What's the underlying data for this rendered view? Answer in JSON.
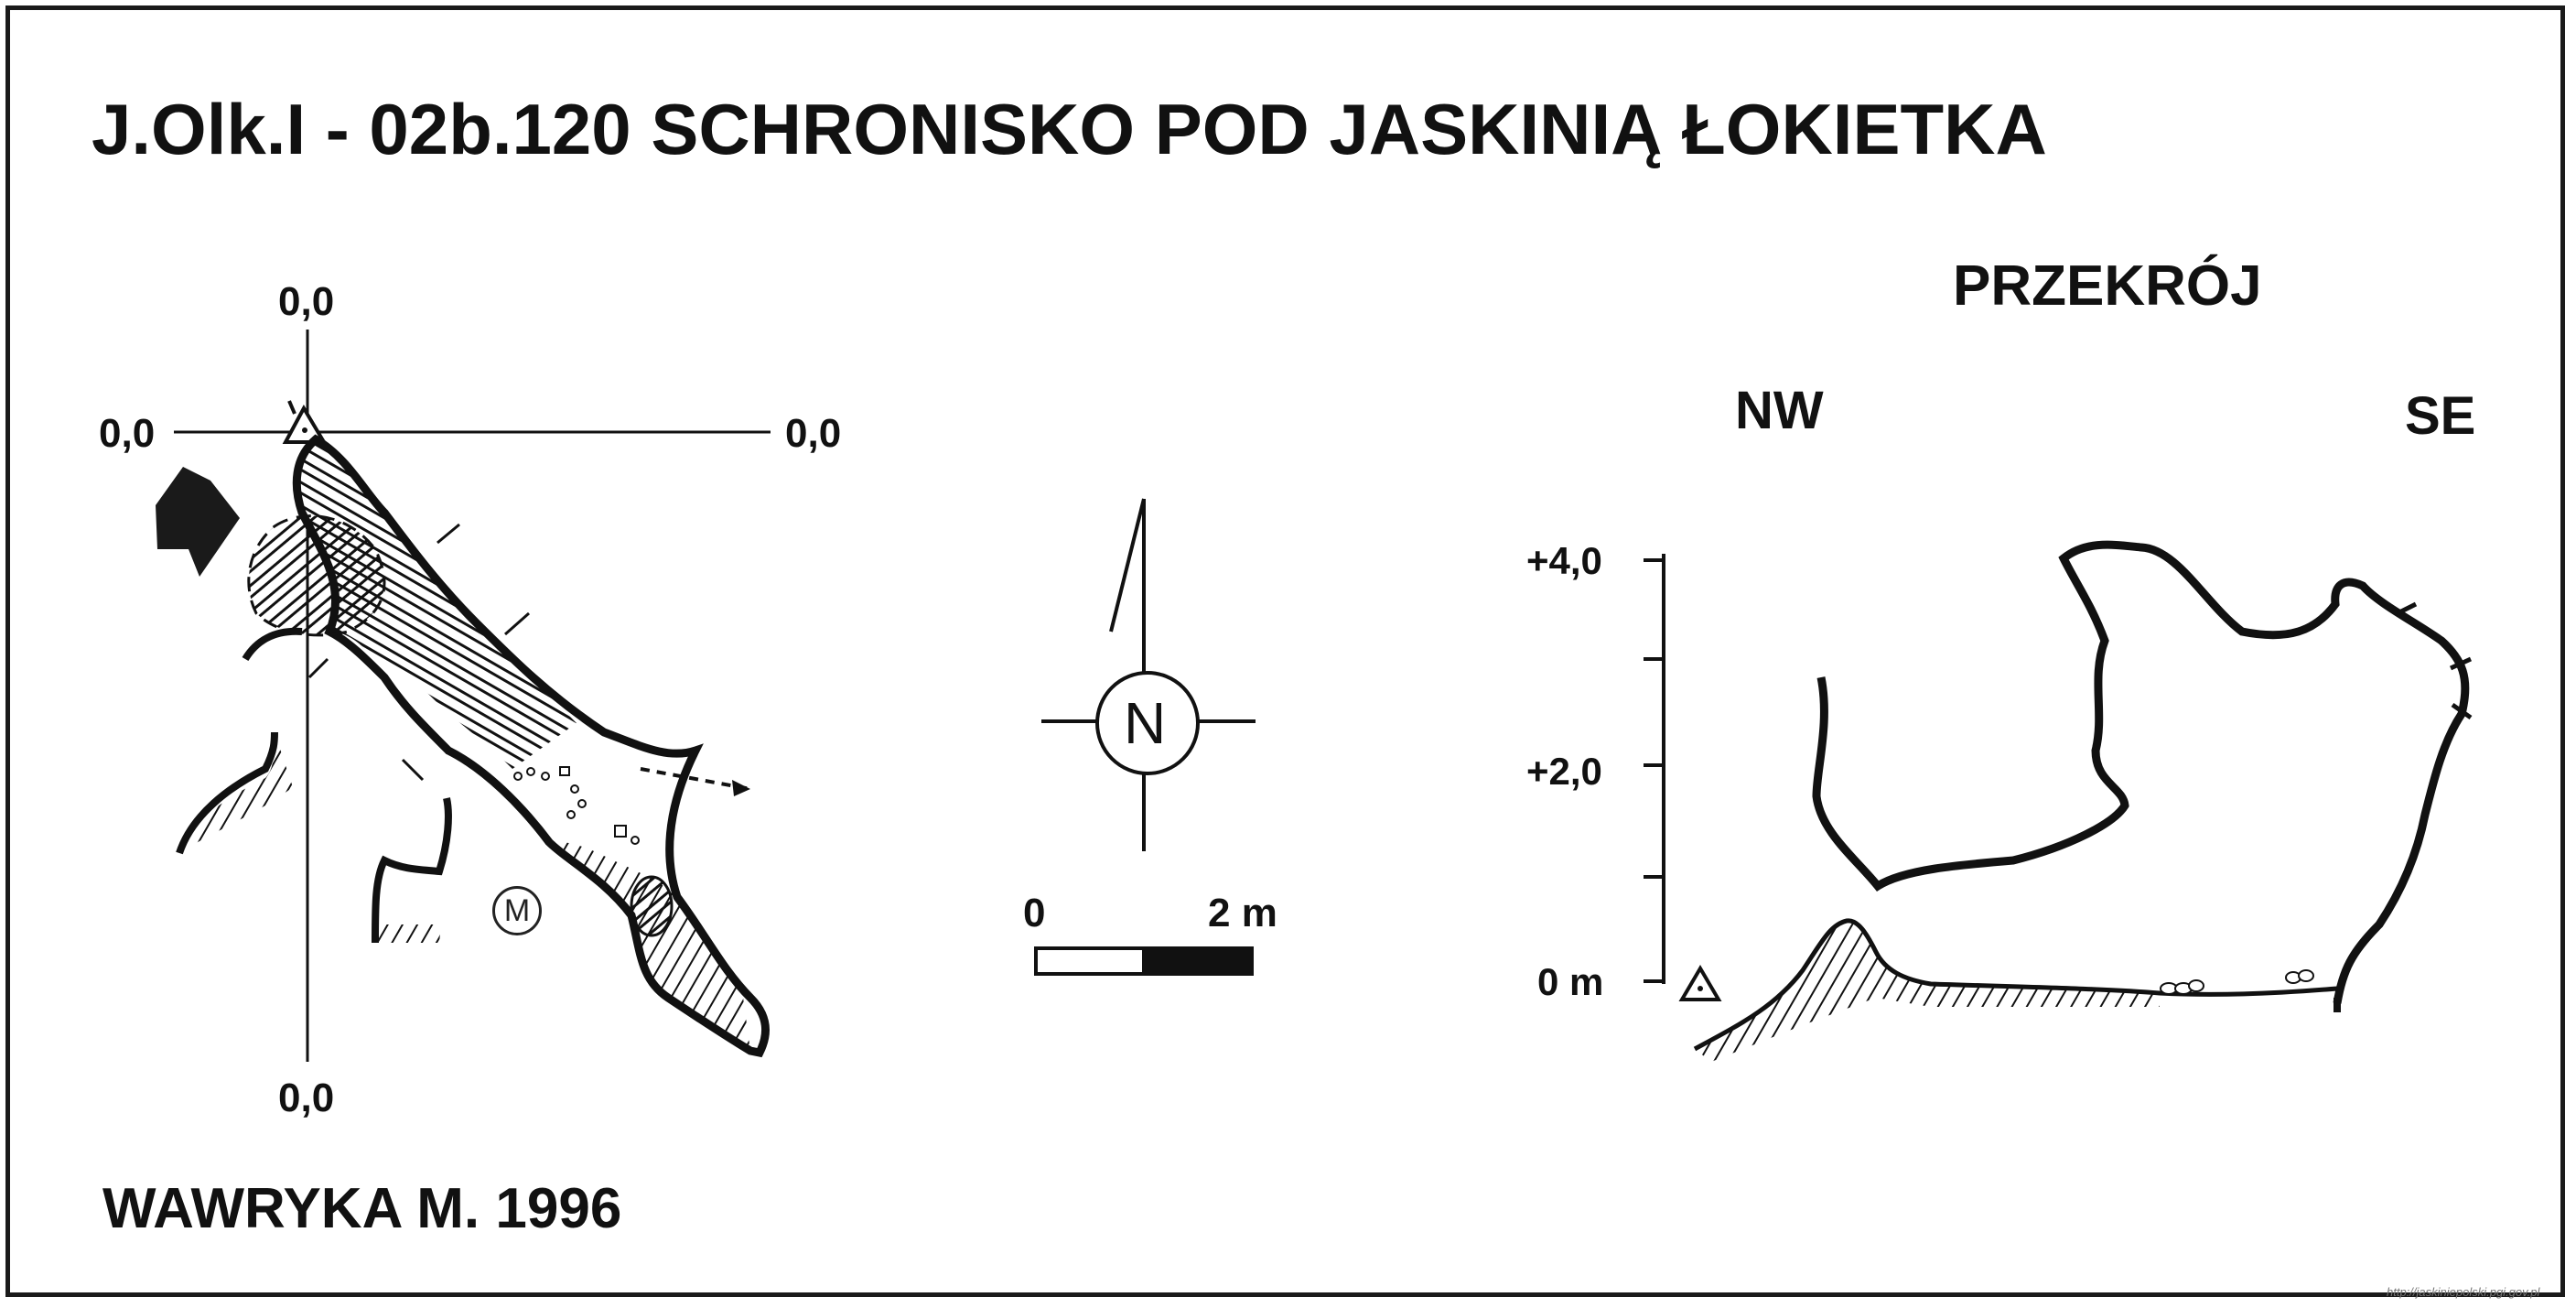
{
  "title": "J.Olk.I - 02b.120  SCHRONISKO POD JASKINIĄ ŁOKIETKA",
  "author": "WAWRYKA M. 1996",
  "plan": {
    "coord_top": "0,0",
    "coord_left": "0,0",
    "coord_right": "0,0",
    "coord_bottom": "0,0",
    "marker_label": "M"
  },
  "compass": {
    "label": "N"
  },
  "scale_bar": {
    "start_label": "0",
    "end_label": "2 m"
  },
  "section": {
    "title": "PRZEKRÓJ",
    "left_dir": "NW",
    "right_dir": "SE",
    "elev_top": "+4,0",
    "elev_mid": "+2,0",
    "elev_zero": "0 m"
  },
  "footer_url": "http://jaskiniepolski.pgi.gov.pl",
  "colors": {
    "ink": "#111111",
    "frame": "#1a1a1a",
    "background": "#ffffff"
  }
}
